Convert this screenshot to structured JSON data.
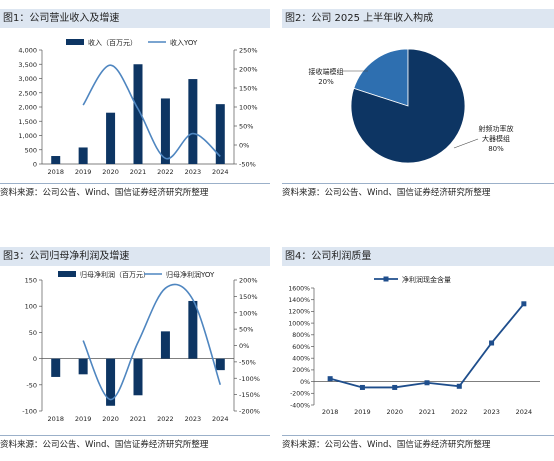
{
  "panels": [
    {
      "title": "图1：公司营业收入及增速",
      "source": "资料来源：公司公告、Wind、国信证券经济研究所整理"
    },
    {
      "title": "图2：公司 2025 上半年收入构成",
      "source": "资料来源：公司公告、Wind、国信证券经济研究所整理"
    },
    {
      "title": "图3：公司归母净利润及增速",
      "source": "资料来源：公司公告、Wind、国信证券经济研究所整理"
    },
    {
      "title": "图4：公司利润质量",
      "source": "资料来源：公司公告、Wind、国信证券经济研究所整理"
    }
  ],
  "colors": {
    "bar": "#0d3563",
    "line": "#4f86c0",
    "pie_main": "#0d3563",
    "pie_minor": "#2e6fb0",
    "title_bg": "#dde6f1"
  },
  "chart_data": [
    {
      "type": "bar",
      "categories": [
        "2018",
        "2019",
        "2020",
        "2021",
        "2022",
        "2023",
        "2024"
      ],
      "series": [
        {
          "name": "收入（百万元）",
          "type": "bar",
          "axis": "left",
          "values": [
            280,
            580,
            1800,
            3500,
            2300,
            2980,
            2100
          ]
        },
        {
          "name": "收入YOY",
          "type": "line",
          "axis": "right",
          "values": [
            null,
            105,
            210,
            95,
            -35,
            30,
            -30
          ]
        }
      ],
      "ylim": [
        0,
        4000
      ],
      "yticks": [
        "0",
        "500",
        "1,000",
        "1,500",
        "2,000",
        "2,500",
        "3,000",
        "3,500",
        "4,000"
      ],
      "y2lim": [
        -50,
        250
      ],
      "y2ticks": [
        "-50%",
        "0%",
        "50%",
        "100%",
        "150%",
        "200%",
        "250%"
      ],
      "legend": "top"
    },
    {
      "type": "pie",
      "categories": [
        "接收端模组",
        "射频功率放大器模组"
      ],
      "values": [
        20,
        80
      ],
      "labels": [
        {
          "lines": [
            "接收端模组",
            "20%"
          ]
        },
        {
          "lines": [
            "射频功率放",
            "大器模组",
            "80%"
          ]
        }
      ]
    },
    {
      "type": "bar",
      "categories": [
        "2018",
        "2019",
        "2020",
        "2021",
        "2022",
        "2023",
        "2024"
      ],
      "series": [
        {
          "name": "归母净利润（百万元）",
          "type": "bar",
          "axis": "left",
          "values": [
            -35,
            -30,
            -90,
            -70,
            52,
            110,
            -22
          ]
        },
        {
          "name": "归母净利润YOY",
          "type": "line",
          "axis": "right",
          "values": [
            null,
            15,
            -165,
            10,
            175,
            140,
            -120
          ]
        }
      ],
      "ylim": [
        -100,
        150
      ],
      "yticks": [
        "-100",
        "-50",
        "0",
        "50",
        "100",
        "150"
      ],
      "y2lim": [
        -200,
        200
      ],
      "y2ticks": [
        "-200%",
        "-150%",
        "-100%",
        "-50%",
        "0%",
        "50%",
        "100%",
        "150%",
        "200%"
      ],
      "legend": "top"
    },
    {
      "type": "line",
      "categories": [
        "2018",
        "2019",
        "2020",
        "2021",
        "2022",
        "2023",
        "2024"
      ],
      "series": [
        {
          "name": "净利润现金含量",
          "values": [
            50,
            -100,
            -100,
            -20,
            -80,
            660,
            1330
          ]
        }
      ],
      "ylim": [
        -400,
        1600
      ],
      "yticks": [
        "-400%",
        "-200%",
        "0%",
        "200%",
        "400%",
        "600%",
        "800%",
        "1000%",
        "1200%",
        "1400%",
        "1600%"
      ],
      "legend": "top"
    }
  ]
}
